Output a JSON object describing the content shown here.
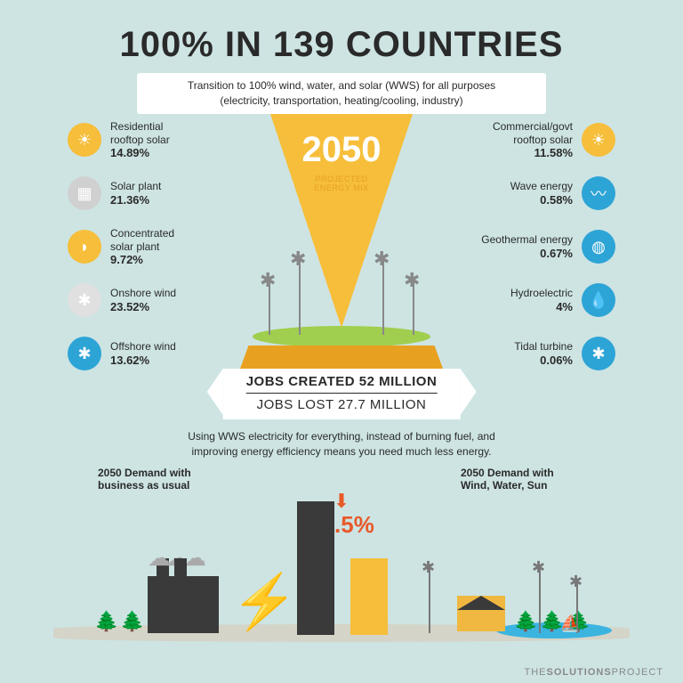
{
  "colors": {
    "bg": "#cde4e3",
    "text": "#2a2a2a",
    "white": "#ffffff",
    "yellow": "#f6be3a",
    "darkyellow": "#e8a020",
    "green": "#a0ce4e",
    "blue": "#2da4d6",
    "orange": "#e85a2a",
    "ground": "#d4d4c8",
    "water": "#3bb4e0",
    "house": "#f0b840",
    "tree": "#1a6040",
    "factory": "#3a3a3a"
  },
  "headline": "100% IN 139 COUNTRIES",
  "subtitle": "Transition to 100% wind, water, and solar (WWS) for all purposes\n(electricity, transportation, heating/cooling, industry)",
  "center": {
    "year": "2050",
    "label": "PROJECTED\nENERGY MIX"
  },
  "left_items": [
    {
      "label": "Residential\nrooftop solar",
      "value": "14.89%",
      "icon": "☀",
      "icon_bg": "#f6be3a"
    },
    {
      "label": "Solar plant",
      "value": "21.36%",
      "icon": "▦",
      "icon_bg": "#d0d0d0"
    },
    {
      "label": "Concentrated\nsolar plant",
      "value": "9.72%",
      "icon": "◗",
      "icon_bg": "#f6be3a"
    },
    {
      "label": "Onshore wind",
      "value": "23.52%",
      "icon": "✱",
      "icon_bg": "#e0e0e0"
    },
    {
      "label": "Offshore wind",
      "value": "13.62%",
      "icon": "✱",
      "icon_bg": "#2da4d6"
    }
  ],
  "right_items": [
    {
      "label": "Commercial/govt\nrooftop solar",
      "value": "11.58%",
      "icon": "☀",
      "icon_bg": "#f6be3a"
    },
    {
      "label": "Wave energy",
      "value": "0.58%",
      "icon": "〰",
      "icon_bg": "#2da4d6"
    },
    {
      "label": "Geothermal energy",
      "value": "0.67%",
      "icon": "◍",
      "icon_bg": "#2da4d6"
    },
    {
      "label": "Hydroelectric",
      "value": "4%",
      "icon": "💧",
      "icon_bg": "#2da4d6"
    },
    {
      "label": "Tidal turbine",
      "value": "0.06%",
      "icon": "✱",
      "icon_bg": "#2da4d6"
    }
  ],
  "jobs": {
    "created": "JOBS CREATED 52 MILLION",
    "lost": "JOBS LOST 27.7 MILLION"
  },
  "wws_text": "Using WWS electricity for everything, instead of burning fuel, and\nimproving energy efficiency means you need much less energy.",
  "demand": {
    "left_label": "2050 Demand with\nbusiness as usual",
    "right_label": "2050 Demand with\nWind, Water, Sun",
    "pct": "42.5%",
    "bar_big_h": 150,
    "bar_small_h": 86
  },
  "logo": {
    "pre": "THE",
    "bold": "SOLUTIONS",
    "post": "PROJECT"
  }
}
